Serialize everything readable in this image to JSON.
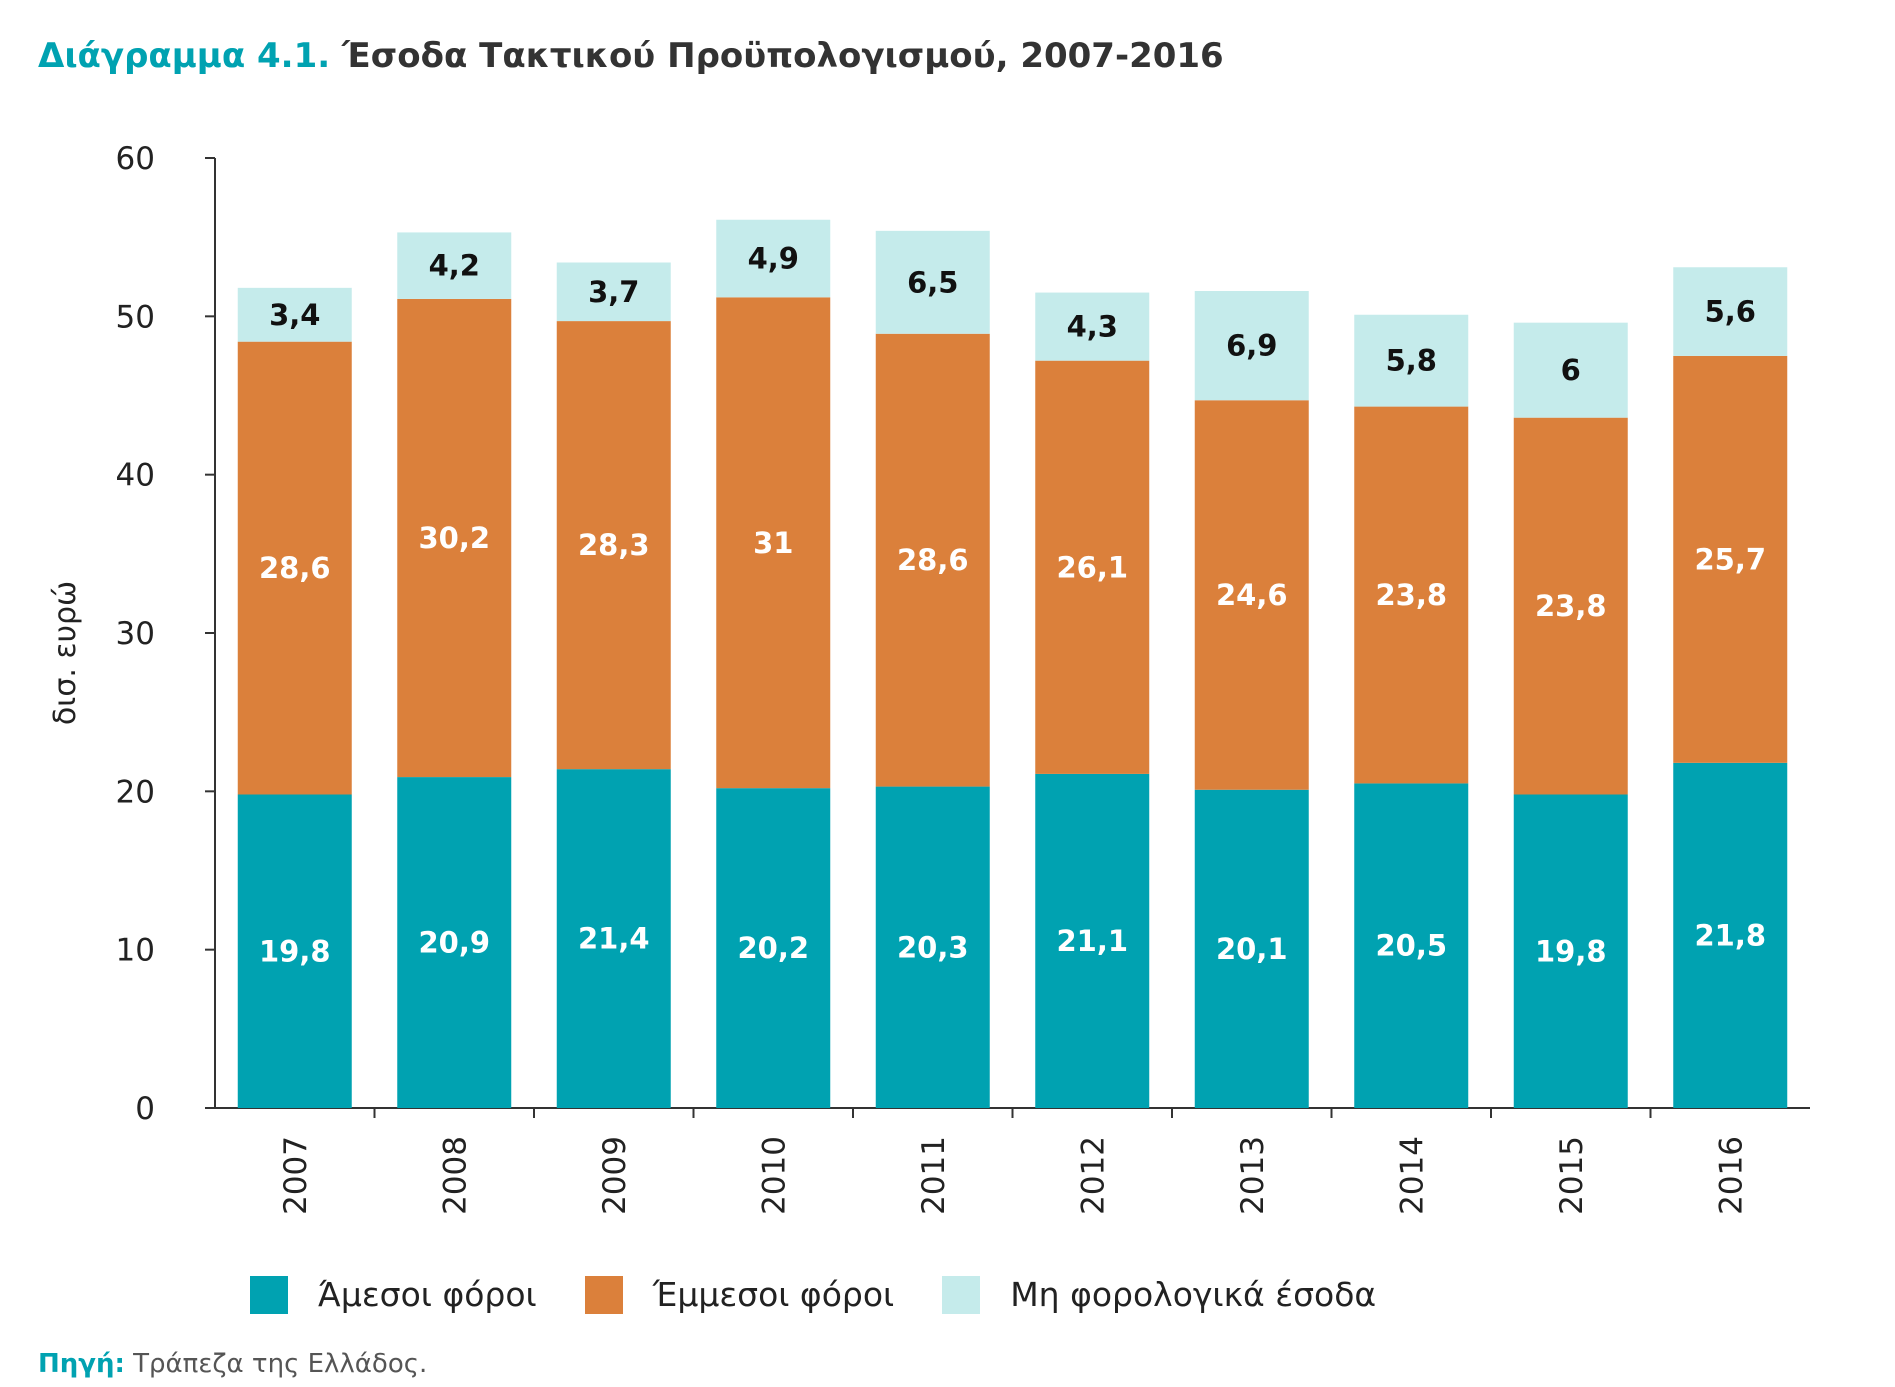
{
  "title": {
    "label": "Διάγραμμα 4.1.",
    "text": "Έσοδα Τακτικού Προϋπολογισμού, 2007-2016"
  },
  "source": {
    "label": "Πηγή:",
    "text": "Τράπεζα της Ελλάδος."
  },
  "colors": {
    "direct": "#00a2b1",
    "indirect": "#db803b",
    "nontax": "#c5ebeb"
  },
  "chart_data": {
    "type": "bar",
    "stacked": true,
    "categories": [
      "2007",
      "2008",
      "2009",
      "2010",
      "2011",
      "2012",
      "2013",
      "2014",
      "2015",
      "2016"
    ],
    "series": [
      {
        "name": "Άμεσοι φόροι",
        "values": [
          19.8,
          20.9,
          21.4,
          20.2,
          20.3,
          21.1,
          20.1,
          20.5,
          19.8,
          21.8
        ],
        "labels": [
          "19,8",
          "20,9",
          "21,4",
          "20,2",
          "20,3",
          "21,1",
          "20,1",
          "20,5",
          "19,8",
          "21,8"
        ]
      },
      {
        "name": "Έμμεσοι φόροι",
        "values": [
          28.6,
          30.2,
          28.3,
          31,
          28.6,
          26.1,
          24.6,
          23.8,
          23.8,
          25.7
        ],
        "labels": [
          "28,6",
          "30,2",
          "28,3",
          "31",
          "28,6",
          "26,1",
          "24,6",
          "23,8",
          "23,8",
          "25,7"
        ]
      },
      {
        "name": "Μη φορολογικά έσοδα",
        "values": [
          3.4,
          4.2,
          3.7,
          4.9,
          6.5,
          4.3,
          6.9,
          5.8,
          6,
          5.6
        ],
        "labels": [
          "3,4",
          "4,2",
          "3,7",
          "4,9",
          "6,5",
          "4,3",
          "6,9",
          "5,8",
          "6",
          "5,6"
        ]
      }
    ],
    "ylabel": "δισ. ευρώ",
    "ylim": [
      0,
      60
    ],
    "yticks": [
      0,
      10,
      20,
      30,
      40,
      50,
      60
    ],
    "legend": "bottom"
  }
}
